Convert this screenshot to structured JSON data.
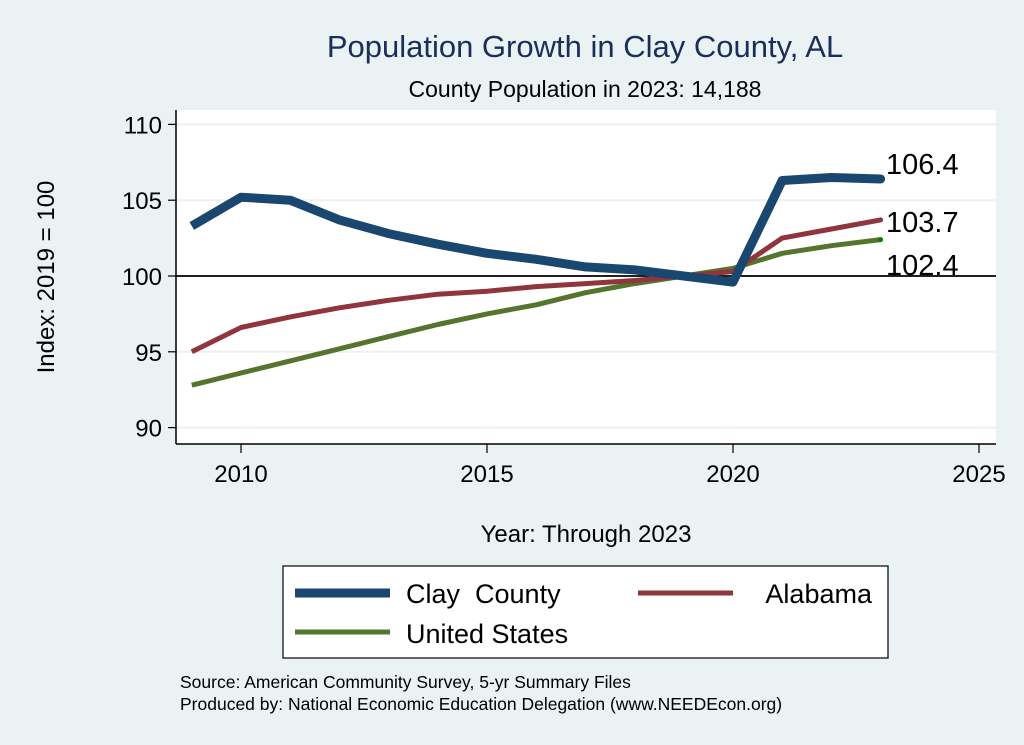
{
  "chart_data": {
    "type": "line",
    "title": "Population Growth in Clay County, AL",
    "subtitle": "County Population in 2023: 14,188",
    "xlabel": "Year: Through 2023",
    "ylabel": "Index: 2019 = 100",
    "xlim": [
      2008.7,
      2025.3
    ],
    "ylim": [
      89,
      111
    ],
    "xticks": [
      2010,
      2015,
      2020,
      2025
    ],
    "yticks": [
      90,
      95,
      100,
      105,
      110
    ],
    "reference_line": 100,
    "grid": true,
    "legend_position": "bottom",
    "x": [
      2009,
      2010,
      2011,
      2012,
      2013,
      2014,
      2015,
      2016,
      2017,
      2018,
      2019,
      2020,
      2021,
      2022,
      2023
    ],
    "series": [
      {
        "name": "Clay  County",
        "color": "#1a476f",
        "values": [
          103.3,
          105.2,
          105.0,
          103.7,
          102.8,
          102.1,
          101.5,
          101.1,
          100.6,
          100.4,
          100.0,
          99.6,
          106.3,
          106.5,
          106.4
        ],
        "end_label": "106.4"
      },
      {
        "name": "Alabama",
        "color": "#90353b",
        "values": [
          95.0,
          96.6,
          97.3,
          97.9,
          98.4,
          98.8,
          99.0,
          99.3,
          99.5,
          99.7,
          100.0,
          100.3,
          102.5,
          103.1,
          103.7
        ],
        "end_label": "103.7"
      },
      {
        "name": "United States",
        "color": "#55752f",
        "values": [
          92.8,
          93.6,
          94.4,
          95.2,
          96.0,
          96.8,
          97.5,
          98.1,
          98.9,
          99.5,
          100.0,
          100.5,
          101.5,
          102.0,
          102.4
        ],
        "end_label": "102.4"
      }
    ],
    "notes": [
      "Source: American Community Survey, 5-yr Summary Files",
      "Produced by: National Economic Education Delegation (www.NEEDEcon.org)"
    ]
  }
}
